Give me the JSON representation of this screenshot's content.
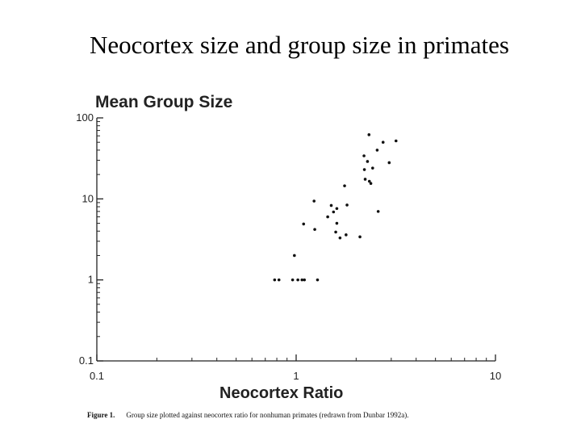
{
  "slide": {
    "title": "Neocortex size and group size in primates"
  },
  "caption": {
    "label": "Figure 1.",
    "text": "Group size plotted against neocortex ratio for nonhuman primates (redrawn from Dunbar 1992a)."
  },
  "chart_data": {
    "type": "scatter",
    "title": "",
    "xlabel": "Neocortex Ratio",
    "ylabel": "Mean Group Size",
    "xscale": "log",
    "yscale": "log",
    "xlim": [
      0.1,
      10
    ],
    "ylim": [
      0.1,
      100
    ],
    "xticks": [
      0.1,
      1,
      10
    ],
    "xticklabels": [
      "0.1",
      "1",
      "10"
    ],
    "yticks": [
      0.1,
      1,
      10,
      100
    ],
    "yticklabels": [
      "0.1",
      "1",
      "10",
      "100"
    ],
    "grid": false,
    "series": [
      {
        "points": [
          {
            "x": 0.78,
            "y": 1.0
          },
          {
            "x": 0.82,
            "y": 1.0
          },
          {
            "x": 0.96,
            "y": 1.0
          },
          {
            "x": 1.02,
            "y": 1.0
          },
          {
            "x": 1.07,
            "y": 1.0
          },
          {
            "x": 1.1,
            "y": 1.0
          },
          {
            "x": 1.28,
            "y": 1.0
          },
          {
            "x": 0.98,
            "y": 2.0
          },
          {
            "x": 1.09,
            "y": 4.9
          },
          {
            "x": 1.24,
            "y": 4.2
          },
          {
            "x": 1.23,
            "y": 9.4
          },
          {
            "x": 1.44,
            "y": 6.0
          },
          {
            "x": 1.5,
            "y": 8.3
          },
          {
            "x": 1.54,
            "y": 6.9
          },
          {
            "x": 1.6,
            "y": 7.6
          },
          {
            "x": 1.6,
            "y": 5.0
          },
          {
            "x": 1.58,
            "y": 3.9
          },
          {
            "x": 1.66,
            "y": 3.3
          },
          {
            "x": 1.78,
            "y": 3.6
          },
          {
            "x": 1.8,
            "y": 8.4
          },
          {
            "x": 1.75,
            "y": 14.5
          },
          {
            "x": 2.09,
            "y": 3.4
          },
          {
            "x": 2.19,
            "y": 34.0
          },
          {
            "x": 2.28,
            "y": 29.0
          },
          {
            "x": 2.2,
            "y": 23.0
          },
          {
            "x": 2.22,
            "y": 17.5
          },
          {
            "x": 2.33,
            "y": 16.5
          },
          {
            "x": 2.37,
            "y": 15.5
          },
          {
            "x": 2.32,
            "y": 62.0
          },
          {
            "x": 2.42,
            "y": 24.0
          },
          {
            "x": 2.55,
            "y": 40.0
          },
          {
            "x": 2.58,
            "y": 7.0
          },
          {
            "x": 2.73,
            "y": 50.0
          },
          {
            "x": 2.93,
            "y": 28.0
          },
          {
            "x": 3.17,
            "y": 52.0
          }
        ]
      }
    ]
  }
}
